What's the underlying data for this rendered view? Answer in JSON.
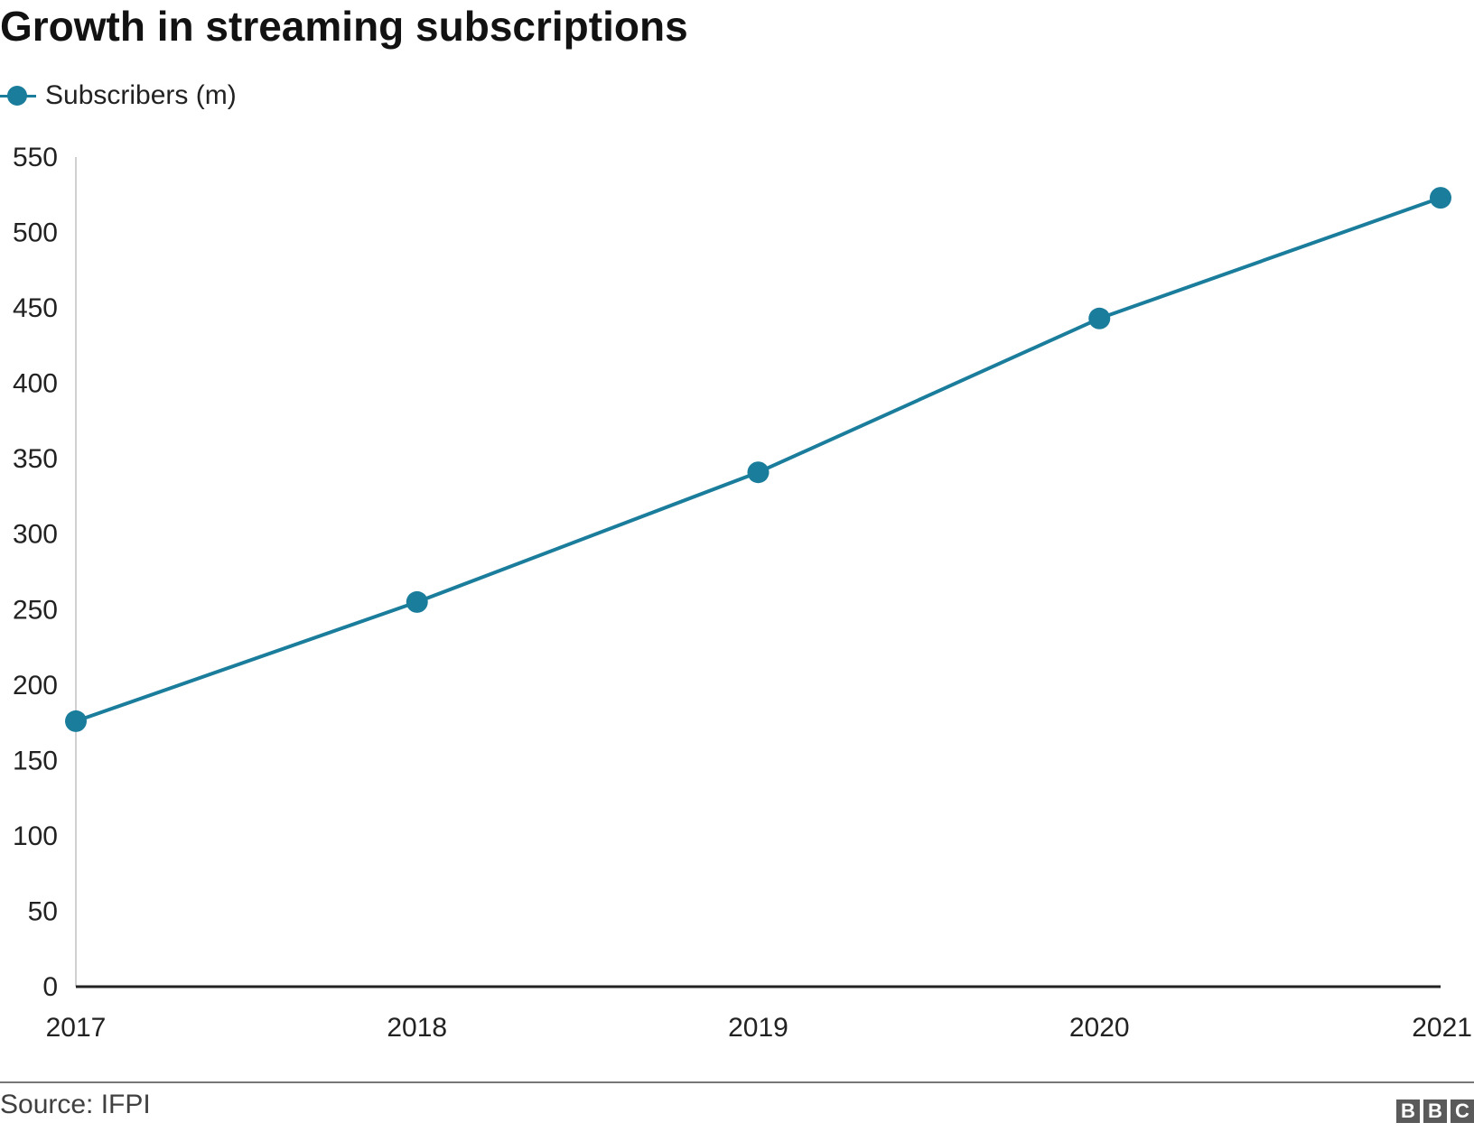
{
  "chart_data": {
    "type": "line",
    "title": "Growth in streaming subscriptions",
    "categories": [
      "2017",
      "2018",
      "2019",
      "2020",
      "2021"
    ],
    "series": [
      {
        "name": "Subscribers (m)",
        "values": [
          176,
          255,
          341,
          443,
          523
        ],
        "color": "#1b7d9c"
      }
    ],
    "xlabel": "",
    "ylabel": "",
    "ylim": [
      0,
      550
    ],
    "yticks": [
      "0",
      "50",
      "100",
      "150",
      "200",
      "250",
      "300",
      "350",
      "400",
      "450",
      "500",
      "550"
    ],
    "legend_position": "top-left",
    "grid": false
  },
  "footer": {
    "source": "Source: IFPI",
    "logo_letters": [
      "B",
      "B",
      "C"
    ]
  }
}
